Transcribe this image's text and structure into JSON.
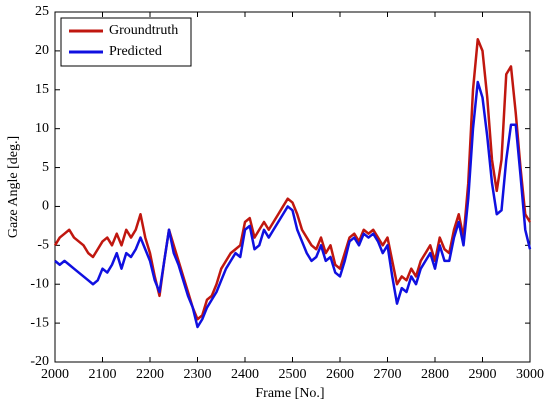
{
  "chart_data": {
    "type": "line",
    "x_label": "Frame [No.]",
    "y_label": "Gaze Angle [deg.]",
    "x": [
      2000,
      2010,
      2020,
      2030,
      2040,
      2050,
      2060,
      2070,
      2080,
      2090,
      2100,
      2110,
      2120,
      2130,
      2140,
      2150,
      2160,
      2170,
      2180,
      2190,
      2200,
      2210,
      2220,
      2230,
      2240,
      2250,
      2260,
      2270,
      2280,
      2290,
      2300,
      2310,
      2320,
      2330,
      2340,
      2350,
      2360,
      2370,
      2380,
      2390,
      2400,
      2410,
      2420,
      2430,
      2440,
      2450,
      2460,
      2470,
      2480,
      2490,
      2500,
      2510,
      2520,
      2530,
      2540,
      2550,
      2560,
      2570,
      2580,
      2590,
      2600,
      2610,
      2620,
      2630,
      2640,
      2650,
      2660,
      2670,
      2680,
      2690,
      2700,
      2710,
      2720,
      2730,
      2740,
      2750,
      2760,
      2770,
      2780,
      2790,
      2800,
      2810,
      2820,
      2830,
      2840,
      2850,
      2860,
      2870,
      2880,
      2890,
      2900,
      2910,
      2920,
      2930,
      2940,
      2950,
      2960,
      2970,
      2980,
      2990,
      3000
    ],
    "series": [
      {
        "name": "Groundtruth",
        "color": "#c0170f",
        "values": [
          -5,
          -4,
          -3.5,
          -3,
          -4,
          -4.5,
          -5,
          -6,
          -6.5,
          -5.5,
          -4.5,
          -4,
          -5,
          -3.5,
          -5,
          -3,
          -4,
          -3,
          -1,
          -4,
          -6,
          -9,
          -11.5,
          -7,
          -3,
          -5,
          -7,
          -9,
          -11,
          -13,
          -14.5,
          -14,
          -12,
          -11.5,
          -10,
          -8,
          -7,
          -6,
          -5.5,
          -5,
          -2,
          -1.5,
          -4,
          -3,
          -2,
          -3,
          -2,
          -1,
          0,
          1,
          0.5,
          -1,
          -3,
          -4,
          -5,
          -5.5,
          -4,
          -6,
          -5,
          -7.5,
          -8,
          -6,
          -4,
          -3.5,
          -4.5,
          -3,
          -3.5,
          -3,
          -4,
          -5,
          -4,
          -7,
          -10,
          -9,
          -9.5,
          -8,
          -9,
          -7,
          -6,
          -5,
          -7,
          -4,
          -5.5,
          -6,
          -3,
          -1,
          -4,
          3,
          15,
          21.5,
          20,
          14,
          6,
          2,
          6,
          17,
          18,
          12,
          5,
          -1,
          -2
        ]
      },
      {
        "name": "Predicted",
        "color": "#1010e0",
        "values": [
          -7,
          -7.5,
          -7,
          -7.5,
          -8,
          -8.5,
          -9,
          -9.5,
          -10,
          -9.5,
          -8,
          -8.5,
          -7.5,
          -6,
          -8,
          -6,
          -6.5,
          -5.5,
          -4,
          -5.5,
          -7,
          -9.5,
          -11,
          -7,
          -3,
          -6,
          -7.5,
          -9.5,
          -11.5,
          -13,
          -15.5,
          -14.5,
          -13,
          -12,
          -11,
          -9.5,
          -8,
          -7,
          -6,
          -6.5,
          -3,
          -2.5,
          -5.5,
          -5,
          -3,
          -4,
          -3,
          -2,
          -1,
          0,
          -0.5,
          -3,
          -4.5,
          -6,
          -7,
          -6.5,
          -5,
          -7,
          -6.5,
          -8.5,
          -9,
          -7,
          -4.5,
          -4,
          -5,
          -3.5,
          -4,
          -3.5,
          -4.5,
          -6,
          -5,
          -9,
          -12.5,
          -10.5,
          -11,
          -9,
          -10,
          -8,
          -7,
          -6,
          -8,
          -5,
          -7,
          -7,
          -4,
          -2,
          -5,
          1,
          10,
          16,
          14,
          9,
          3,
          -1,
          -0.5,
          6,
          10.5,
          10.5,
          4,
          -3,
          -5.5
        ]
      }
    ],
    "xlim": [
      2000,
      3000
    ],
    "xticks": [
      2000,
      2100,
      2200,
      2300,
      2400,
      2500,
      2600,
      2700,
      2800,
      2900,
      3000
    ],
    "ylim": [
      -20,
      25
    ],
    "yticks": [
      -20,
      -15,
      -10,
      -5,
      0,
      5,
      10,
      15,
      20,
      25
    ],
    "legend": "upper left"
  }
}
